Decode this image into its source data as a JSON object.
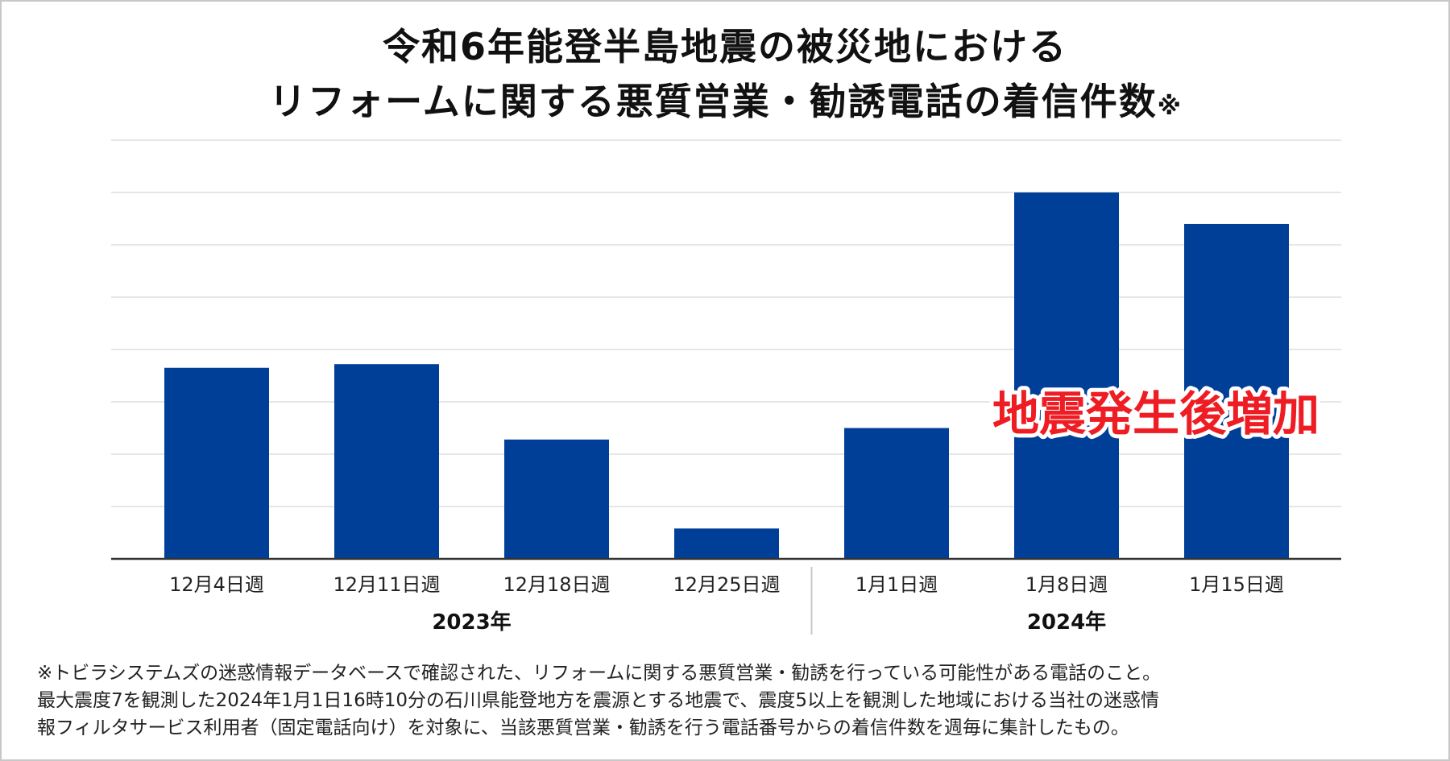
{
  "title": {
    "line1": "令和6年能登半島地震の被災地における",
    "line2": "リフォームに関する悪質営業・勧誘電話の着信件数",
    "mark": "※"
  },
  "chart_data": {
    "type": "bar",
    "categories": [
      "12月4日週",
      "12月11日週",
      "12月18日週",
      "12月25日週",
      "1月1日週",
      "1月8日週",
      "1月15日週"
    ],
    "groups": [
      {
        "label": "2023年",
        "categories": [
          "12月4日週",
          "12月11日週",
          "12月18日週",
          "12月25日週"
        ]
      },
      {
        "label": "2024年",
        "categories": [
          "1月1日週",
          "1月8日週",
          "1月15日週"
        ]
      }
    ],
    "values": [
      3.65,
      3.72,
      2.28,
      0.58,
      2.5,
      7.0,
      6.4
    ],
    "ylim": [
      0,
      8
    ],
    "grid": true,
    "annotation": "地震発生後増加",
    "colors": {
      "bar": "#003f98",
      "annotation": "#ee1c23",
      "grid": "#dedede",
      "axis": "#333333"
    }
  },
  "footnotes": [
    "※トビラシステムズの迷惑情報データベースで確認された、リフォームに関する悪質営業・勧誘を行っている可能性がある電話のこと。",
    "最大震度7を観測した2024年1月1日16時10分の石川県能登地方を震源とする地震で、震度5以上を観測した地域における当社の迷惑情",
    "報フィルタサービス利用者（固定電話向け）を対象に、当該悪質営業・勧誘を行う電話番号からの着信件数を週毎に集計したもの。"
  ]
}
